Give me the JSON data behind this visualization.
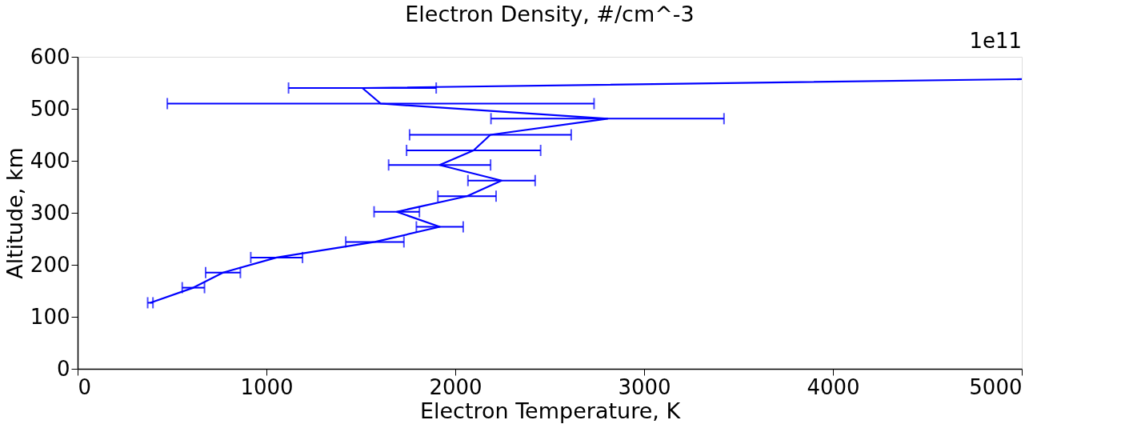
{
  "chart_data": {
    "type": "line",
    "title": "Electron Density, #/cm^-3",
    "xlabel": "Electron Temperature, K",
    "ylabel": "Altitude, km",
    "annotations": [
      "1e11"
    ],
    "x": [
      385,
      613,
      770,
      1054,
      1574,
      1918,
      1690,
      2062,
      2245,
      1917,
      2097,
      2186,
      2806,
      1605,
      1508,
      5000
    ],
    "series": [
      {
        "color": "#0000ff",
        "values": [
          127,
          156,
          185,
          214,
          244,
          273,
          302,
          332,
          362,
          392,
          420,
          450,
          481,
          510,
          540,
          557
        ],
        "xerrors": [
          14,
          59,
          92,
          137,
          154,
          124,
          120,
          154,
          178,
          270,
          355,
          428,
          617,
          1130,
          391,
          null
        ]
      }
    ],
    "xlim": [
      0,
      5000
    ],
    "xticks": [
      0,
      1000,
      2000,
      3000,
      4000,
      5000
    ],
    "ylim": [
      0,
      600
    ],
    "yticks": [
      0,
      100,
      200,
      300,
      400,
      500,
      600
    ],
    "grid": false,
    "marker": "none",
    "line_style": "solid"
  }
}
